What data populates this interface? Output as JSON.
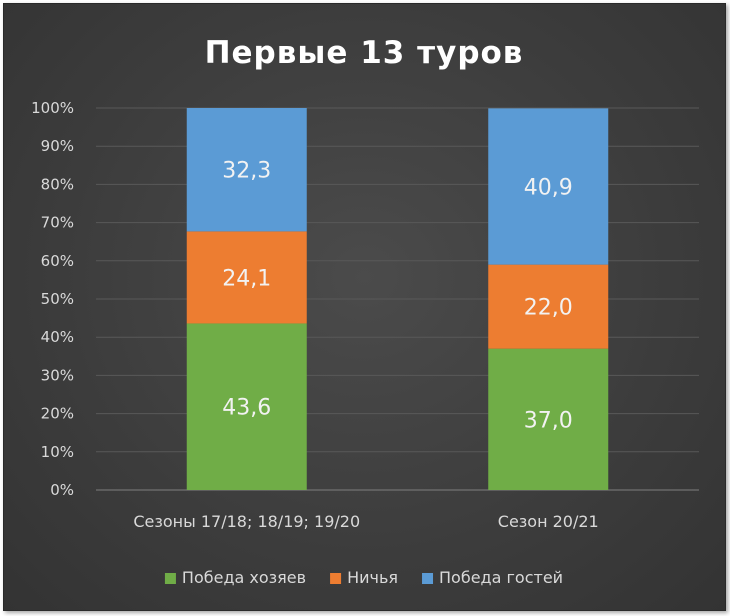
{
  "chart_data": {
    "type": "bar",
    "stacked": true,
    "percent": true,
    "title": "Первые 13 туров",
    "categories": [
      "Сезоны 17/18; 18/19; 19/20",
      "Сезон 20/21"
    ],
    "series": [
      {
        "name": "Победа хозяев",
        "values": [
          43.6,
          37.0
        ],
        "labels": [
          "43,6",
          "37,0"
        ],
        "color": "#70ad47"
      },
      {
        "name": "Ничья",
        "values": [
          24.1,
          22.0
        ],
        "labels": [
          "24,1",
          "22,0"
        ],
        "color": "#ed7d31"
      },
      {
        "name": "Победа гостей",
        "values": [
          32.3,
          40.9
        ],
        "labels": [
          "32,3",
          "40,9"
        ],
        "color": "#5b9bd5"
      }
    ],
    "y_ticks": [
      "0%",
      "10%",
      "20%",
      "30%",
      "40%",
      "50%",
      "60%",
      "70%",
      "80%",
      "90%",
      "100%"
    ],
    "ylim": [
      0,
      100
    ],
    "grid": true,
    "legend": "bottom",
    "background": "#404040",
    "gridline_color": "#595959"
  }
}
